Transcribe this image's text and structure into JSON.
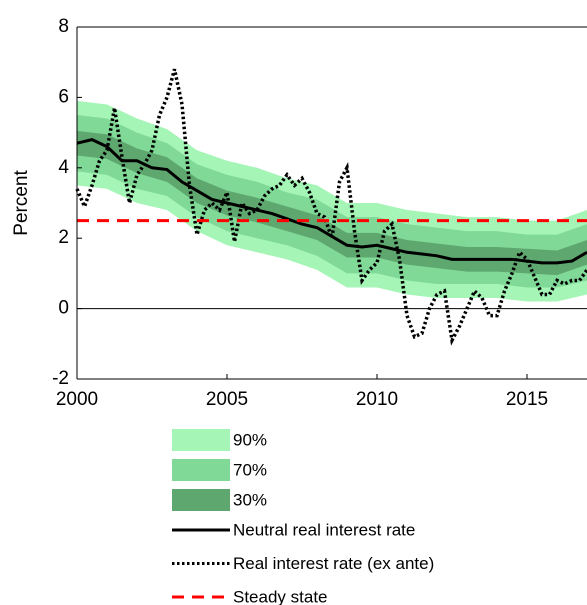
{
  "chart_data": {
    "type": "line",
    "ylabel": "Percent",
    "xlim": [
      2000,
      2017
    ],
    "ylim": [
      -2,
      8
    ],
    "xticks": [
      2000,
      2005,
      2010,
      2015
    ],
    "yticks": [
      -2,
      0,
      2,
      4,
      6,
      8
    ],
    "series": [
      {
        "name": "90%",
        "type": "band",
        "color": "#a4f5b6",
        "x": [
          2000,
          2001,
          2002,
          2003,
          2004,
          2005,
          2006,
          2007,
          2008,
          2009,
          2010,
          2011,
          2012,
          2013,
          2014,
          2015,
          2016,
          2017
        ],
        "lower": [
          3.5,
          3.4,
          3.0,
          2.8,
          2.2,
          1.8,
          1.6,
          1.4,
          1.1,
          0.6,
          0.6,
          0.4,
          0.3,
          0.3,
          0.3,
          0.2,
          0.2,
          0.4
        ],
        "upper": [
          5.9,
          5.8,
          5.4,
          5.1,
          4.5,
          4.2,
          4.0,
          3.7,
          3.5,
          3.0,
          3.0,
          2.8,
          2.7,
          2.6,
          2.6,
          2.5,
          2.5,
          2.8
        ]
      },
      {
        "name": "70%",
        "type": "band",
        "color": "#80d996",
        "x": [
          2000,
          2001,
          2002,
          2003,
          2004,
          2005,
          2006,
          2007,
          2008,
          2009,
          2010,
          2011,
          2012,
          2013,
          2014,
          2015,
          2016,
          2017
        ],
        "lower": [
          3.9,
          3.8,
          3.4,
          3.2,
          2.6,
          2.2,
          2.0,
          1.8,
          1.5,
          1.0,
          1.0,
          0.8,
          0.7,
          0.7,
          0.7,
          0.6,
          0.6,
          0.8
        ],
        "upper": [
          5.5,
          5.4,
          5.0,
          4.7,
          4.1,
          3.8,
          3.6,
          3.3,
          3.1,
          2.6,
          2.6,
          2.4,
          2.3,
          2.2,
          2.2,
          2.1,
          2.1,
          2.4
        ]
      },
      {
        "name": "30%",
        "type": "band",
        "color": "#5ea86f",
        "x": [
          2000,
          2001,
          2002,
          2003,
          2004,
          2005,
          2006,
          2007,
          2008,
          2009,
          2010,
          2011,
          2012,
          2013,
          2014,
          2015,
          2016,
          2017
        ],
        "lower": [
          4.35,
          4.25,
          3.85,
          3.6,
          3.0,
          2.65,
          2.45,
          2.2,
          1.95,
          1.45,
          1.45,
          1.25,
          1.15,
          1.05,
          1.05,
          1.0,
          0.95,
          1.25
        ],
        "upper": [
          5.05,
          4.95,
          4.55,
          4.3,
          3.7,
          3.35,
          3.15,
          2.9,
          2.65,
          2.15,
          2.15,
          1.95,
          1.85,
          1.75,
          1.75,
          1.7,
          1.65,
          1.95
        ]
      },
      {
        "name": "Neutral real interest rate",
        "type": "solid",
        "color": "#000000",
        "x": [
          2000,
          2000.5,
          2001,
          2001.5,
          2002,
          2002.5,
          2003,
          2003.5,
          2004,
          2004.5,
          2005,
          2005.5,
          2006,
          2006.5,
          2007,
          2007.5,
          2008,
          2008.5,
          2009,
          2009.5,
          2010,
          2010.5,
          2011,
          2011.5,
          2012,
          2012.5,
          2013,
          2013.5,
          2014,
          2014.5,
          2015,
          2015.5,
          2016,
          2016.5,
          2017
        ],
        "values": [
          4.7,
          4.8,
          4.6,
          4.2,
          4.2,
          4.0,
          3.95,
          3.6,
          3.35,
          3.1,
          3.0,
          2.9,
          2.8,
          2.7,
          2.55,
          2.4,
          2.3,
          2.05,
          1.8,
          1.75,
          1.8,
          1.7,
          1.6,
          1.55,
          1.5,
          1.4,
          1.4,
          1.4,
          1.4,
          1.4,
          1.35,
          1.3,
          1.3,
          1.35,
          1.6
        ]
      },
      {
        "name": "Real interest rate (ex ante)",
        "type": "dotted",
        "color": "#000000",
        "x": [
          2000,
          2000.25,
          2000.5,
          2000.75,
          2001,
          2001.25,
          2001.5,
          2001.75,
          2002,
          2002.25,
          2002.5,
          2002.75,
          2003,
          2003.25,
          2003.5,
          2003.75,
          2004,
          2004.25,
          2004.5,
          2004.75,
          2005,
          2005.25,
          2005.5,
          2005.75,
          2006,
          2006.25,
          2006.5,
          2006.75,
          2007,
          2007.25,
          2007.5,
          2007.75,
          2008,
          2008.25,
          2008.5,
          2008.75,
          2009,
          2009.25,
          2009.5,
          2009.75,
          2010,
          2010.25,
          2010.5,
          2010.75,
          2011,
          2011.25,
          2011.5,
          2011.75,
          2012,
          2012.25,
          2012.5,
          2012.75,
          2013,
          2013.25,
          2013.5,
          2013.75,
          2014,
          2014.25,
          2014.5,
          2014.75,
          2015,
          2015.25,
          2015.5,
          2015.75,
          2016,
          2016.25,
          2016.5,
          2016.75,
          2017
        ],
        "values": [
          3.4,
          2.9,
          3.5,
          4.2,
          4.5,
          5.7,
          4.3,
          3.0,
          3.8,
          4.1,
          4.5,
          5.5,
          6.0,
          6.8,
          5.8,
          3.5,
          2.1,
          2.8,
          3.0,
          2.8,
          3.3,
          1.9,
          3.0,
          2.7,
          2.8,
          3.2,
          3.4,
          3.5,
          3.8,
          3.5,
          3.7,
          3.3,
          2.7,
          2.6,
          2.0,
          3.6,
          4.0,
          2.2,
          0.8,
          1.1,
          1.3,
          2.2,
          2.4,
          1.4,
          -0.2,
          -0.8,
          -0.7,
          0.0,
          0.4,
          0.5,
          -0.9,
          -0.5,
          0.0,
          0.5,
          0.3,
          -0.2,
          -0.2,
          0.5,
          1.0,
          1.6,
          1.4,
          0.9,
          0.4,
          0.4,
          0.8,
          0.7,
          0.8,
          0.8,
          1.1
        ]
      },
      {
        "name": "Steady state",
        "type": "hline",
        "color": "#ff0000",
        "value": 2.5
      }
    ]
  }
}
